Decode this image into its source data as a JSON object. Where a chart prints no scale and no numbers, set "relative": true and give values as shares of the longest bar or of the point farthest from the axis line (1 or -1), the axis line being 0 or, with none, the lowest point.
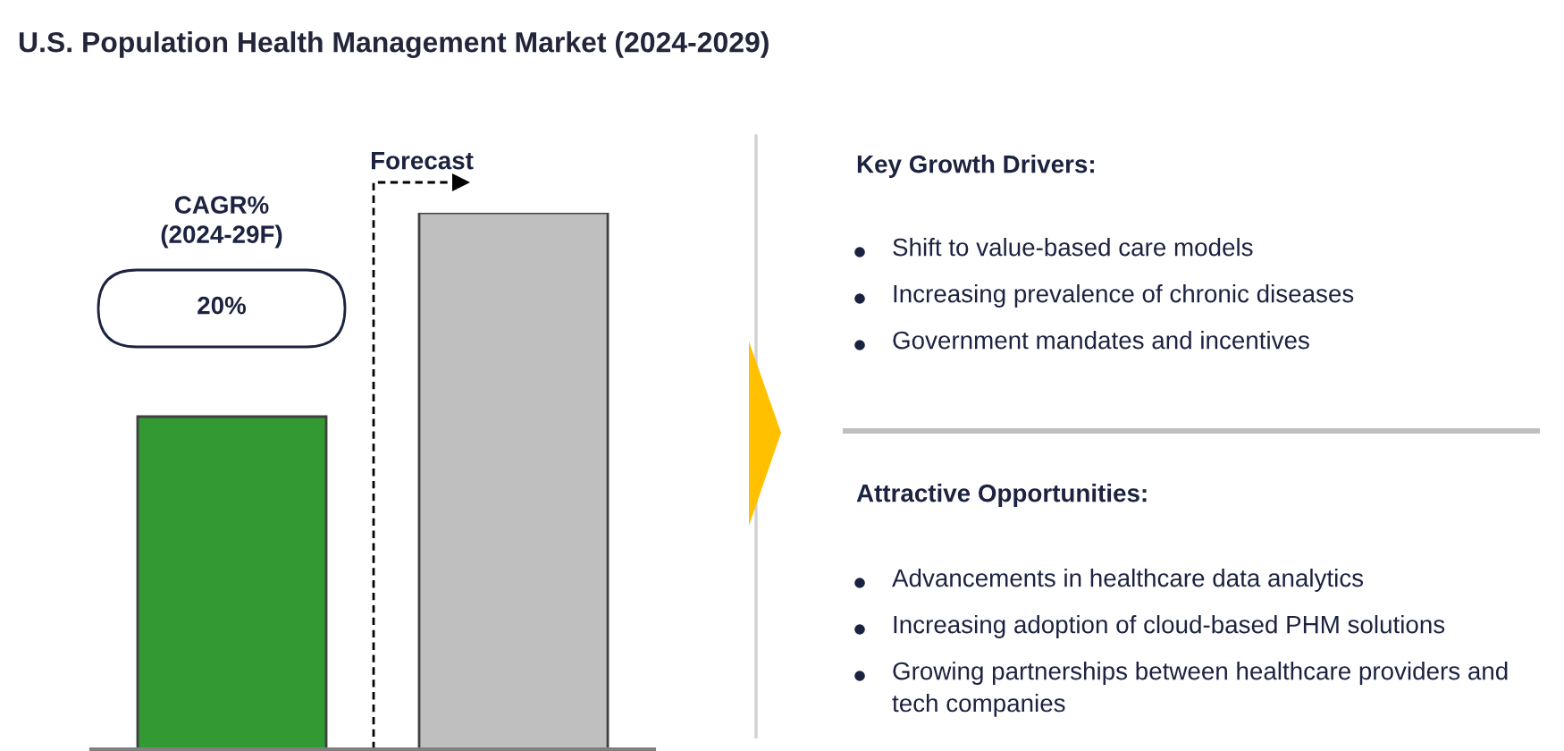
{
  "chart_data": [
    {
      "type": "bar",
      "title": "U.S. Population Health Management Market (2024-2029)",
      "categories": [
        null,
        null
      ],
      "values": [
        0.62,
        1
      ],
      "colors": [
        "#339933",
        "#bfbfbf"
      ],
      "relative": true,
      "annotations": [
        "CAGR%\n(2024-29F)",
        "20%",
        "Forecast"
      ]
    },
    {
      "type": "other",
      "title": "Key Growth Drivers:",
      "annotations": [
        "Shift to value-based care models",
        "Increasing prevalence of chronic diseases",
        "Government mandates and incentives"
      ]
    },
    {
      "type": "other",
      "title": "Attractive Opportunities:",
      "annotations": [
        "Advancements in healthcare data analytics",
        "Increasing adoption of cloud-based PHM solutions",
        "Growing partnerships between healthcare providers and tech companies"
      ]
    }
  ]
}
